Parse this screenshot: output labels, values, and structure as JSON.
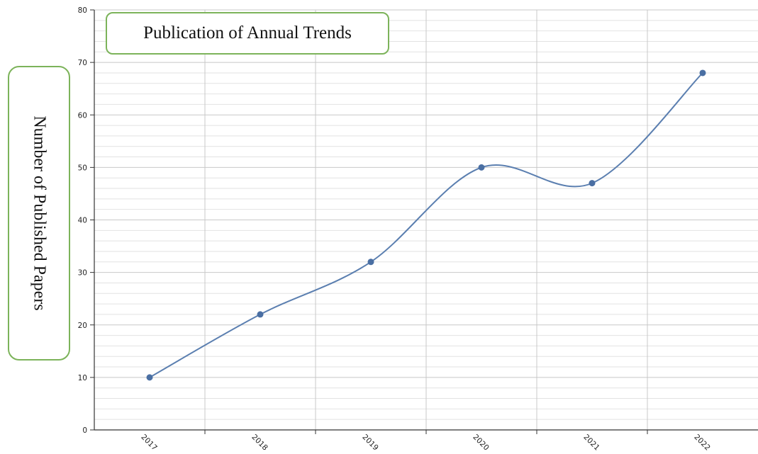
{
  "chart_data": {
    "type": "line",
    "title": "Publication of Annual Trends",
    "ylabel": "Number of Published Papers",
    "xlabel": "",
    "x": [
      "2017",
      "2018",
      "2019",
      "2020",
      "2021",
      "2022"
    ],
    "series": [
      {
        "values": [
          10,
          22,
          32,
          50,
          47,
          68
        ]
      }
    ],
    "ylim": [
      0,
      80
    ],
    "yticks": [
      0,
      10,
      20,
      30,
      40,
      50,
      60,
      70,
      80
    ],
    "grid": true,
    "smooth": true,
    "legend": "none"
  },
  "colors": {
    "line": "#5b7fb0",
    "marker": "#4a6fa3",
    "grid_major": "#c8c8c8",
    "grid_minor": "#e2e2e2",
    "axis": "#333333",
    "label_border": "#7cb35a"
  }
}
